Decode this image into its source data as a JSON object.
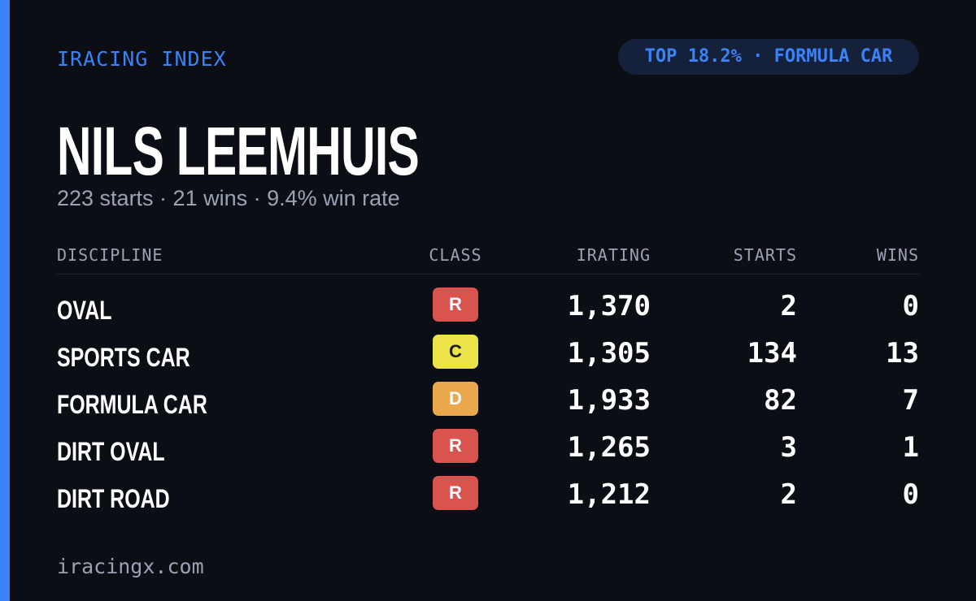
{
  "header": {
    "eyebrow": "IRACING INDEX",
    "badge": "TOP 18.2% · FORMULA CAR",
    "name": "NILS LEEMHUIS",
    "summary": "223 starts · 21 wins · 9.4% win rate"
  },
  "table": {
    "columns": [
      "DISCIPLINE",
      "CLASS",
      "IRATING",
      "STARTS",
      "WINS"
    ],
    "rows": [
      {
        "discipline": "OVAL",
        "class": "R",
        "class_color": "#d9534f",
        "class_text": "#ffffff",
        "irating": "1,370",
        "starts": "2",
        "wins": "0"
      },
      {
        "discipline": "SPORTS CAR",
        "class": "C",
        "class_color": "#ece24a",
        "class_text": "#1a1a1a",
        "irating": "1,305",
        "starts": "134",
        "wins": "13"
      },
      {
        "discipline": "FORMULA CAR",
        "class": "D",
        "class_color": "#e9a84c",
        "class_text": "#ffffff",
        "irating": "1,933",
        "starts": "82",
        "wins": "7"
      },
      {
        "discipline": "DIRT OVAL",
        "class": "R",
        "class_color": "#d9534f",
        "class_text": "#ffffff",
        "irating": "1,265",
        "starts": "3",
        "wins": "1"
      },
      {
        "discipline": "DIRT ROAD",
        "class": "R",
        "class_color": "#d9534f",
        "class_text": "#ffffff",
        "irating": "1,212",
        "starts": "2",
        "wins": "0"
      }
    ]
  },
  "footer": {
    "site": "iracingx.com"
  }
}
